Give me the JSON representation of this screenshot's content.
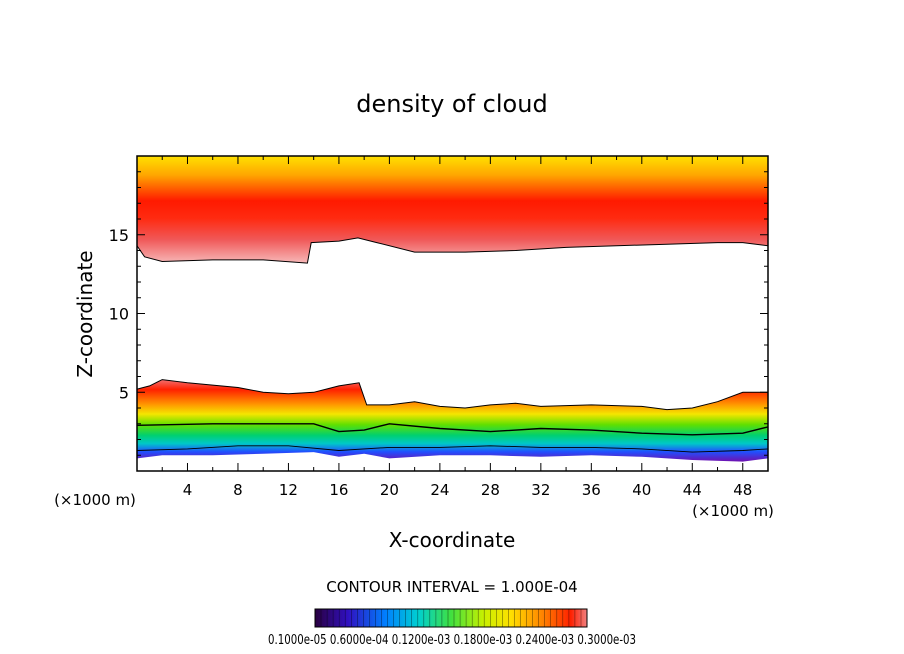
{
  "chart_data": {
    "type": "heatmap",
    "title": "density of cloud",
    "xlabel": "X-coordinate",
    "ylabel": "Z-coordinate",
    "x_unit": "(×1000 m)",
    "z_unit": "(×1000 m)",
    "xlim": [
      0,
      50
    ],
    "ylim": [
      0,
      20
    ],
    "x_ticks": [
      "4",
      "8",
      "12",
      "16",
      "20",
      "24",
      "28",
      "32",
      "36",
      "40",
      "44",
      "48"
    ],
    "y_ticks": [
      "5",
      "10",
      "15"
    ],
    "contour_interval_text": "CONTOUR INTERVAL = 1.000E-04",
    "colorbar_labels_text": "0.1000e-05   0.6000e-04   0.1200e-03   0.1800e-03   0.2400e-03   0.3000e-03",
    "colorbar_range": [
      1e-06,
      0.0003
    ],
    "upper_layer": {
      "bottom_z": [
        [
          0,
          14.3
        ],
        [
          0.6,
          13.6
        ],
        [
          2,
          13.3
        ],
        [
          6,
          13.4
        ],
        [
          10,
          13.4
        ],
        [
          13.5,
          13.2
        ],
        [
          13.8,
          14.5
        ],
        [
          16,
          14.6
        ],
        [
          17.5,
          14.8
        ],
        [
          19,
          14.5
        ],
        [
          22,
          13.9
        ],
        [
          26,
          13.9
        ],
        [
          30,
          14.0
        ],
        [
          34,
          14.2
        ],
        [
          38,
          14.3
        ],
        [
          42,
          14.4
        ],
        [
          46,
          14.5
        ],
        [
          48,
          14.5
        ],
        [
          50,
          14.3
        ]
      ],
      "peak_z": 16.3
    },
    "lower_layer": {
      "top_z": [
        [
          0,
          5.2
        ],
        [
          1,
          5.4
        ],
        [
          2,
          5.8
        ],
        [
          4,
          5.6
        ],
        [
          8,
          5.3
        ],
        [
          10,
          5.0
        ],
        [
          12,
          4.9
        ],
        [
          14,
          5.0
        ],
        [
          15,
          5.2
        ],
        [
          16,
          5.4
        ],
        [
          17.6,
          5.6
        ],
        [
          18.2,
          4.2
        ],
        [
          20,
          4.2
        ],
        [
          22,
          4.4
        ],
        [
          24,
          4.1
        ],
        [
          26,
          4.0
        ],
        [
          28,
          4.2
        ],
        [
          30,
          4.3
        ],
        [
          32,
          4.1
        ],
        [
          36,
          4.2
        ],
        [
          40,
          4.1
        ],
        [
          42,
          3.9
        ],
        [
          44,
          4.0
        ],
        [
          46,
          4.4
        ],
        [
          48,
          5.0
        ],
        [
          50,
          5.0
        ]
      ],
      "bottom_z": [
        [
          0,
          0.8
        ],
        [
          2,
          1.0
        ],
        [
          6,
          1.0
        ],
        [
          10,
          1.1
        ],
        [
          14,
          1.2
        ],
        [
          16,
          0.9
        ],
        [
          18,
          1.1
        ],
        [
          20,
          0.8
        ],
        [
          24,
          1.0
        ],
        [
          28,
          1.0
        ],
        [
          32,
          0.9
        ],
        [
          36,
          1.0
        ],
        [
          40,
          0.9
        ],
        [
          44,
          0.7
        ],
        [
          48,
          0.6
        ],
        [
          50,
          0.8
        ]
      ]
    },
    "contour_lines_z": [
      [
        [
          0,
          2.9
        ],
        [
          6,
          3.0
        ],
        [
          10,
          3.0
        ],
        [
          14,
          3.0
        ],
        [
          16,
          2.5
        ],
        [
          18,
          2.6
        ],
        [
          20,
          3.0
        ],
        [
          24,
          2.7
        ],
        [
          28,
          2.5
        ],
        [
          32,
          2.7
        ],
        [
          36,
          2.6
        ],
        [
          40,
          2.4
        ],
        [
          44,
          2.3
        ],
        [
          48,
          2.4
        ],
        [
          50,
          2.8
        ]
      ],
      [
        [
          0,
          1.3
        ],
        [
          4,
          1.4
        ],
        [
          8,
          1.6
        ],
        [
          12,
          1.6
        ],
        [
          16,
          1.3
        ],
        [
          20,
          1.5
        ],
        [
          24,
          1.5
        ],
        [
          28,
          1.6
        ],
        [
          32,
          1.5
        ],
        [
          36,
          1.5
        ],
        [
          40,
          1.4
        ],
        [
          44,
          1.2
        ],
        [
          48,
          1.3
        ],
        [
          50,
          1.4
        ]
      ]
    ]
  }
}
